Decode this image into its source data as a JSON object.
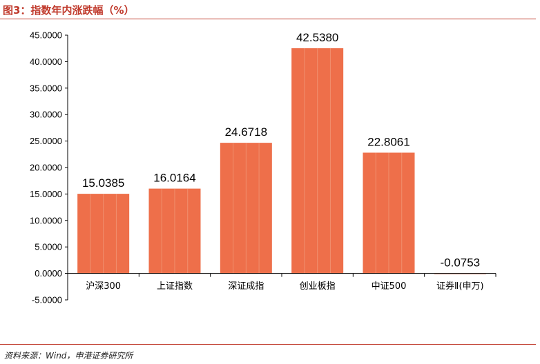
{
  "header": {
    "title": "图3：指数年内涨跌幅（%）"
  },
  "footer": {
    "source": "资料来源：Wind，申港证券研究所"
  },
  "colors": {
    "bar": "#EE6F4A",
    "bar_stripe": "#F0906F",
    "accent": "#C0392B",
    "axis": "#000000"
  },
  "chart_data": {
    "type": "bar",
    "categories": [
      "沪深300",
      "上证指数",
      "深证成指",
      "创业板指",
      "中证500",
      "证券Ⅱ(申万)"
    ],
    "values": [
      15.0385,
      16.0164,
      24.6718,
      42.538,
      22.8061,
      -0.0753
    ],
    "value_labels": [
      "15.0385",
      "16.0164",
      "24.6718",
      "42.5380",
      "22.8061",
      "-0.0753"
    ],
    "y_ticks": [
      -5,
      0,
      5,
      10,
      15,
      20,
      25,
      30,
      35,
      40,
      45
    ],
    "y_tick_labels": [
      "-5.0000",
      "0.0000",
      "5.0000",
      "10.0000",
      "15.0000",
      "20.0000",
      "25.0000",
      "30.0000",
      "35.0000",
      "40.0000",
      "45.0000"
    ],
    "ylim": [
      -5,
      45
    ],
    "grid": false,
    "title": "",
    "xlabel": "",
    "ylabel": ""
  }
}
